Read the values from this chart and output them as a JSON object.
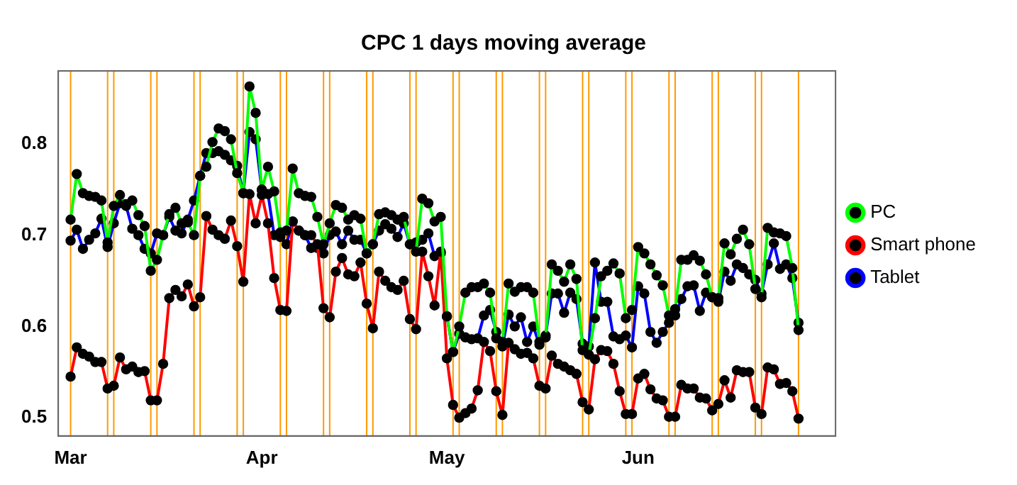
{
  "chart_data": {
    "type": "line",
    "title": "CPC 1 days moving average",
    "x": [
      "--03-01",
      "--03-02",
      "--03-03",
      "--03-04",
      "--03-05",
      "--03-06",
      "--03-07",
      "--03-08",
      "--03-09",
      "--03-10",
      "--03-11",
      "--03-12",
      "--03-13",
      "--03-14",
      "--03-15",
      "--03-16",
      "--03-17",
      "--03-18",
      "--03-19",
      "--03-20",
      "--03-21",
      "--03-22",
      "--03-23",
      "--03-24",
      "--03-25",
      "--03-26",
      "--03-27",
      "--03-28",
      "--03-29",
      "--03-30",
      "--03-31",
      "--04-01",
      "--04-02",
      "--04-03",
      "--04-04",
      "--04-05",
      "--04-06",
      "--04-07",
      "--04-08",
      "--04-09",
      "--04-10",
      "--04-11",
      "--04-12",
      "--04-13",
      "--04-14",
      "--04-15",
      "--04-16",
      "--04-17",
      "--04-18",
      "--04-19",
      "--04-20",
      "--04-21",
      "--04-22",
      "--04-23",
      "--04-24",
      "--04-25",
      "--04-26",
      "--04-27",
      "--04-28",
      "--04-29",
      "--04-30",
      "--05-01",
      "--05-02",
      "--05-03",
      "--05-04",
      "--05-05",
      "--05-06",
      "--05-07",
      "--05-08",
      "--05-09",
      "--05-10",
      "--05-11",
      "--05-12",
      "--05-13",
      "--05-14",
      "--05-15",
      "--05-16",
      "--05-17",
      "--05-18",
      "--05-19",
      "--05-20",
      "--05-21",
      "--05-22",
      "--05-23",
      "--05-24",
      "--05-25",
      "--05-26",
      "--05-27",
      "--05-28",
      "--05-29",
      "--05-30",
      "--05-31",
      "--06-01",
      "--06-02",
      "--06-03",
      "--06-04",
      "--06-05",
      "--06-06",
      "--06-07",
      "--06-08",
      "--06-09",
      "--06-10",
      "--06-11",
      "--06-12",
      "--06-13",
      "--06-14",
      "--06-15",
      "--06-16",
      "--06-17",
      "--06-18",
      "--06-19",
      "--06-20",
      "--06-21",
      "--06-22",
      "--06-23",
      "--06-24",
      "--06-25",
      "--06-26",
      "--06-27"
    ],
    "series": [
      {
        "name": "PC",
        "color": "#00ff00",
        "values": [
          0.717,
          0.767,
          0.746,
          0.743,
          0.742,
          0.738,
          0.692,
          0.732,
          0.744,
          0.734,
          0.738,
          0.722,
          0.71,
          0.661,
          0.673,
          0.7,
          0.723,
          0.73,
          0.713,
          0.714,
          0.7,
          0.765,
          0.775,
          0.802,
          0.817,
          0.814,
          0.805,
          0.768,
          0.746,
          0.863,
          0.834,
          0.75,
          0.775,
          0.748,
          0.703,
          0.705,
          0.773,
          0.746,
          0.743,
          0.742,
          0.72,
          0.69,
          0.713,
          0.733,
          0.73,
          0.717,
          0.722,
          0.718,
          0.68,
          0.69,
          0.723,
          0.725,
          0.722,
          0.717,
          0.72,
          0.69,
          0.682,
          0.74,
          0.735,
          0.715,
          0.72,
          0.611,
          0.572,
          0.6,
          0.637,
          0.643,
          0.643,
          0.647,
          0.637,
          0.587,
          0.583,
          0.647,
          0.638,
          0.643,
          0.643,
          0.637,
          0.583,
          0.588,
          0.668,
          0.661,
          0.649,
          0.668,
          0.652,
          0.574,
          0.569,
          0.609,
          0.655,
          0.661,
          0.669,
          0.658,
          0.609,
          0.618,
          0.687,
          0.68,
          0.668,
          0.656,
          0.645,
          0.612,
          0.619,
          0.673,
          0.673,
          0.678,
          0.672,
          0.657,
          0.632,
          0.631,
          0.691,
          0.679,
          0.696,
          0.706,
          0.69,
          0.641,
          0.632,
          0.708,
          0.703,
          0.702,
          0.699,
          0.664,
          0.596
        ]
      },
      {
        "name": "Smart phone",
        "color": "#ff0000",
        "values": [
          0.545,
          0.577,
          0.57,
          0.567,
          0.561,
          0.561,
          0.532,
          0.535,
          0.566,
          0.553,
          0.556,
          0.55,
          0.551,
          0.519,
          0.519,
          0.559,
          0.631,
          0.64,
          0.633,
          0.646,
          0.622,
          0.632,
          0.721,
          0.706,
          0.7,
          0.696,
          0.716,
          0.688,
          0.649,
          0.745,
          0.713,
          0.744,
          0.713,
          0.653,
          0.618,
          0.617,
          0.715,
          0.705,
          0.7,
          0.7,
          0.69,
          0.62,
          0.61,
          0.66,
          0.675,
          0.657,
          0.655,
          0.67,
          0.625,
          0.598,
          0.66,
          0.65,
          0.643,
          0.64,
          0.65,
          0.608,
          0.597,
          0.682,
          0.655,
          0.623,
          0.682,
          0.565,
          0.514,
          0.5,
          0.505,
          0.51,
          0.53,
          0.583,
          0.573,
          0.529,
          0.503,
          0.582,
          0.575,
          0.57,
          0.571,
          0.565,
          0.535,
          0.532,
          0.568,
          0.559,
          0.556,
          0.552,
          0.548,
          0.517,
          0.509,
          0.564,
          0.574,
          0.573,
          0.559,
          0.529,
          0.504,
          0.504,
          0.543,
          0.548,
          0.531,
          0.521,
          0.519,
          0.501,
          0.501,
          0.536,
          0.532,
          0.532,
          0.522,
          0.521,
          0.508,
          0.515,
          0.541,
          0.522,
          0.552,
          0.55,
          0.55,
          0.511,
          0.504,
          0.555,
          0.553,
          0.537,
          0.538,
          0.529,
          0.499
        ]
      },
      {
        "name": "Tablet",
        "color": "#0000ff",
        "values": [
          0.694,
          0.706,
          0.685,
          0.695,
          0.702,
          0.718,
          0.687,
          0.713,
          0.735,
          0.732,
          0.707,
          0.7,
          0.685,
          0.68,
          0.702,
          0.7,
          0.72,
          0.705,
          0.702,
          0.717,
          0.738,
          0.765,
          0.79,
          0.79,
          0.792,
          0.788,
          0.782,
          0.776,
          0.746,
          0.813,
          0.805,
          0.749,
          0.745,
          0.7,
          0.698,
          0.69,
          0.715,
          0.705,
          0.7,
          0.686,
          0.686,
          0.68,
          0.7,
          0.704,
          0.69,
          0.705,
          0.695,
          0.695,
          0.68,
          0.69,
          0.705,
          0.712,
          0.707,
          0.698,
          0.713,
          0.69,
          0.692,
          0.695,
          0.702,
          0.677,
          0.68,
          0.611,
          0.572,
          0.592,
          0.588,
          0.586,
          0.587,
          0.612,
          0.618,
          0.594,
          0.578,
          0.613,
          0.6,
          0.61,
          0.583,
          0.6,
          0.58,
          0.59,
          0.636,
          0.636,
          0.615,
          0.637,
          0.63,
          0.581,
          0.578,
          0.67,
          0.627,
          0.627,
          0.589,
          0.586,
          0.59,
          0.577,
          0.644,
          0.636,
          0.594,
          0.582,
          0.594,
          0.604,
          0.612,
          0.63,
          0.644,
          0.645,
          0.617,
          0.637,
          0.632,
          0.627,
          0.66,
          0.65,
          0.668,
          0.664,
          0.657,
          0.651,
          0.636,
          0.668,
          0.691,
          0.663,
          0.668,
          0.653,
          0.604
        ]
      }
    ],
    "ylim": [
      0.48,
      0.88
    ],
    "yticks": [
      0.5,
      0.6,
      0.7,
      0.8
    ],
    "xlim": [
      "--02-27",
      "--07-03"
    ],
    "xticks": [
      {
        "value": "--03-01",
        "label": "Mar"
      },
      {
        "value": "--04-01",
        "label": "Apr"
      },
      {
        "value": "--05-01",
        "label": "May"
      },
      {
        "value": "--06-01",
        "label": "Jun"
      }
    ],
    "marker": "circle",
    "line_style": "solid",
    "grid": false,
    "legend": "right",
    "ref_lines": [
      {
        "axis": "x",
        "value": "--03-01",
        "color": "#ff9900"
      },
      {
        "axis": "x",
        "value": "--03-07",
        "color": "#ff9900"
      },
      {
        "axis": "x",
        "value": "--03-08",
        "color": "#ff9900"
      },
      {
        "axis": "x",
        "value": "--03-14",
        "color": "#ff9900"
      },
      {
        "axis": "x",
        "value": "--03-15",
        "color": "#ff9900"
      },
      {
        "axis": "x",
        "value": "--03-21",
        "color": "#ff9900"
      },
      {
        "axis": "x",
        "value": "--03-22",
        "color": "#ff9900"
      },
      {
        "axis": "x",
        "value": "--03-28",
        "color": "#ff9900"
      },
      {
        "axis": "x",
        "value": "--03-29",
        "color": "#ff9900"
      },
      {
        "axis": "x",
        "value": "--04-04",
        "color": "#ff9900"
      },
      {
        "axis": "x",
        "value": "--04-05",
        "color": "#ff9900"
      },
      {
        "axis": "x",
        "value": "--04-11",
        "color": "#ff9900"
      },
      {
        "axis": "x",
        "value": "--04-12",
        "color": "#ff9900"
      },
      {
        "axis": "x",
        "value": "--04-18",
        "color": "#ff9900"
      },
      {
        "axis": "x",
        "value": "--04-19",
        "color": "#ff9900"
      },
      {
        "axis": "x",
        "value": "--04-25",
        "color": "#ff9900"
      },
      {
        "axis": "x",
        "value": "--04-26",
        "color": "#ff9900"
      },
      {
        "axis": "x",
        "value": "--05-02",
        "color": "#ff9900"
      },
      {
        "axis": "x",
        "value": "--05-03",
        "color": "#ff9900"
      },
      {
        "axis": "x",
        "value": "--05-09",
        "color": "#ff9900"
      },
      {
        "axis": "x",
        "value": "--05-10",
        "color": "#ff9900"
      },
      {
        "axis": "x",
        "value": "--05-16",
        "color": "#ff9900"
      },
      {
        "axis": "x",
        "value": "--05-17",
        "color": "#ff9900"
      },
      {
        "axis": "x",
        "value": "--05-23",
        "color": "#ff9900"
      },
      {
        "axis": "x",
        "value": "--05-24",
        "color": "#ff9900"
      },
      {
        "axis": "x",
        "value": "--05-30",
        "color": "#ff9900"
      },
      {
        "axis": "x",
        "value": "--05-31",
        "color": "#ff9900"
      },
      {
        "axis": "x",
        "value": "--06-06",
        "color": "#ff9900"
      },
      {
        "axis": "x",
        "value": "--06-07",
        "color": "#ff9900"
      },
      {
        "axis": "x",
        "value": "--06-13",
        "color": "#ff9900"
      },
      {
        "axis": "x",
        "value": "--06-14",
        "color": "#ff9900"
      },
      {
        "axis": "x",
        "value": "--06-20",
        "color": "#ff9900"
      },
      {
        "axis": "x",
        "value": "--06-21",
        "color": "#ff9900"
      },
      {
        "axis": "x",
        "value": "--06-27",
        "color": "#ff9900"
      }
    ]
  }
}
